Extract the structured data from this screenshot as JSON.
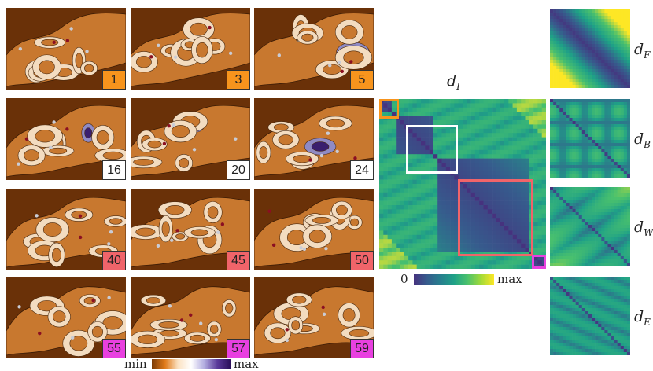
{
  "panels": [
    {
      "label": "1",
      "color": "#f7941d"
    },
    {
      "label": "3",
      "color": "#f7941d"
    },
    {
      "label": "5",
      "color": "#f7941d"
    },
    {
      "label": "16",
      "color": "#ffffff"
    },
    {
      "label": "20",
      "color": "#ffffff"
    },
    {
      "label": "24",
      "color": "#ffffff"
    },
    {
      "label": "40",
      "color": "#f0646a"
    },
    {
      "label": "45",
      "color": "#f0646a"
    },
    {
      "label": "50",
      "color": "#f0646a"
    },
    {
      "label": "55",
      "color": "#e840e0"
    },
    {
      "label": "57",
      "color": "#e840e0"
    },
    {
      "label": "59",
      "color": "#e840e0"
    }
  ],
  "scalar_colorbar": {
    "min_label": "min",
    "max_label": "max"
  },
  "distance_matrix": {
    "label": "d",
    "subscript": "I",
    "colorbar": {
      "min_label": "0",
      "max_label": "max"
    },
    "highlight_colors": [
      "#f7941d",
      "#ffffff",
      "#f0646a",
      "#e840e0"
    ]
  },
  "small_matrices": [
    {
      "label": "d",
      "subscript": "F"
    },
    {
      "label": "d",
      "subscript": "B"
    },
    {
      "label": "d",
      "subscript": "W"
    },
    {
      "label": "d",
      "subscript": "E"
    }
  ],
  "colors": {
    "terrain_dark": "#6a3108",
    "terrain_mid": "#c8782f",
    "terrain_light": "#f3dcc0",
    "purple_dark": "#3a1f6e",
    "purple_mid": "#8f8ac4",
    "viridis_dark": "#47246b",
    "viridis_mid": "#2aa48a",
    "viridis_light": "#e7e31f"
  }
}
